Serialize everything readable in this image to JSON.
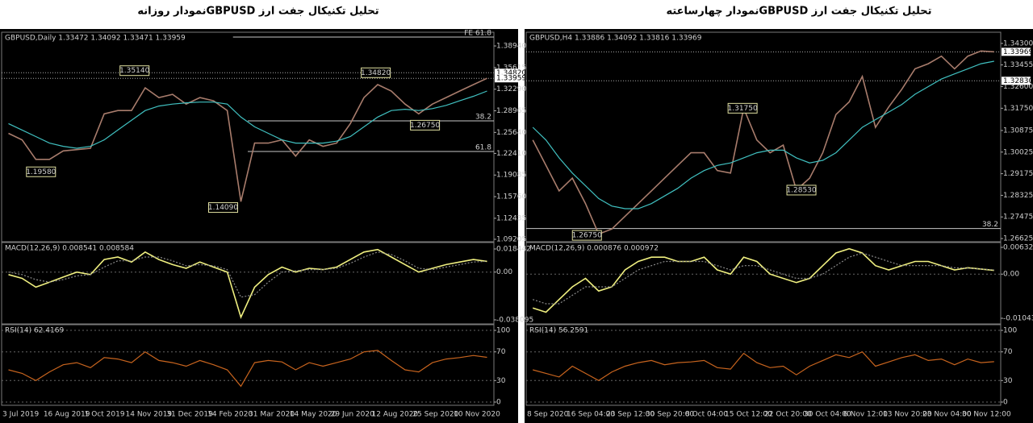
{
  "chart_data": [
    {
      "type": "line",
      "title": "تحلیل تکنیکال جفت ارز GBPUSDنمودار روزانه",
      "categories": [
        "3 Jul 2019",
        null,
        null,
        "16 Aug 2019",
        null,
        null,
        "1 Oct 2019",
        null,
        null,
        "14 Nov 2019",
        null,
        null,
        "31 Dec 2019",
        null,
        null,
        "14 Feb 2020",
        null,
        null,
        "31 Mar 2020",
        null,
        null,
        "14 May 2020",
        null,
        null,
        "29 Jun 2020",
        null,
        null,
        "12 Aug 2020",
        null,
        null,
        "25 Sep 2020",
        null,
        null,
        "10 Nov 2020",
        null,
        null
      ],
      "price": {
        "label": "GBPUSD,Daily 1.33472 1.34092 1.33471 1.33959",
        "ylim": [
          1.0883,
          1.4105
        ],
        "yticks": [
          {
            "value": 1.3894,
            "label": "1.38940"
          },
          1.35615,
          {
            "value": 1.3229,
            "label": "1.32290"
          },
          1.28965,
          {
            "value": 1.2564,
            "label": "1.25640"
          },
          {
            "value": 1.2241,
            "label": "1.22410"
          },
          1.19085,
          {
            "value": 1.1576,
            "label": "1.15760"
          },
          1.12435,
          1.09205
        ],
        "series": [
          {
            "color": "#a87c6c",
            "values": [
              1.255,
              1.245,
              1.215,
              1.215,
              1.228,
              1.23,
              1.232,
              1.285,
              1.29,
              1.29,
              1.325,
              1.31,
              1.315,
              1.3,
              1.31,
              1.305,
              1.29,
              1.15,
              1.24,
              1.24,
              1.245,
              1.22,
              1.245,
              1.235,
              1.24,
              1.27,
              1.31,
              1.33,
              1.32,
              1.3,
              1.285,
              1.3,
              1.31,
              1.32,
              1.33,
              1.3396
            ]
          },
          {
            "color": "#40c0c0",
            "values": [
              1.27,
              1.26,
              1.25,
              1.24,
              1.235,
              1.232,
              1.235,
              1.245,
              1.26,
              1.275,
              1.29,
              1.297,
              1.3,
              1.302,
              1.303,
              1.303,
              1.3,
              1.28,
              1.265,
              1.255,
              1.245,
              1.24,
              1.24,
              1.24,
              1.243,
              1.25,
              1.265,
              1.28,
              1.29,
              1.292,
              1.29,
              1.293,
              1.298,
              1.305,
              1.312,
              1.32
            ]
          }
        ],
        "annotations": [
          {
            "value": 1.3514,
            "label": "1.35140"
          },
          {
            "value": 1.1958,
            "label": "1.19580"
          },
          {
            "value": 1.1409,
            "label": "1.14090"
          },
          {
            "value": 1.3482,
            "label": "1.34820"
          },
          {
            "value": 1.2675,
            "label": "1.26750"
          }
        ],
        "levels": [
          {
            "level": 1.403,
            "text": "FE 61.8"
          },
          {
            "level": 1.2742,
            "text": "38.2"
          },
          {
            "level": 1.2271,
            "text": "61.8"
          }
        ],
        "price_tags": [
          {
            "value": 1.3482,
            "label": "1.34820"
          },
          1.33959
        ]
      },
      "macd": {
        "label": "MACD(12,26,9) 0.008541 0.008584",
        "ylim": [
          -0.04131,
          0.02358
        ],
        "yticks": [
          0.018442,
          {
            "value": 0,
            "label": "0.00"
          },
          -0.038095
        ],
        "series": [
          {
            "color": "#f0f080",
            "values": [
              -0.002,
              -0.005,
              -0.012,
              -0.008,
              -0.004,
              0,
              -0.002,
              0.01,
              0.012,
              0.008,
              0.016,
              0.01,
              0.006,
              0.003,
              0.008,
              0.004,
              0,
              -0.036,
              -0.012,
              -0.002,
              0.004,
              0,
              0.003,
              0.002,
              0.004,
              0.01,
              0.016,
              0.018,
              0.012,
              0.006,
              0,
              0.003,
              0.006,
              0.008,
              0.01,
              0.008541
            ]
          },
          {
            "color": "#8a8a8a",
            "values": [
              0,
              -0.002,
              -0.006,
              -0.008,
              -0.006,
              -0.003,
              -0.002,
              0.004,
              0.009,
              0.009,
              0.012,
              0.012,
              0.009,
              0.005,
              0.006,
              0.005,
              0.002,
              -0.02,
              -0.018,
              -0.008,
              0,
              0.001,
              0.002,
              0.002,
              0.003,
              0.007,
              0.012,
              0.016,
              0.014,
              0.009,
              0.003,
              0.002,
              0.004,
              0.006,
              0.008,
              0.008584
            ]
          }
        ]
      },
      "rsi": {
        "label": "RSI(14) 62.4169",
        "grid": true,
        "ylim": [
          -4.5,
          107.9
        ],
        "yticks": [
          100,
          70,
          30,
          0
        ],
        "series": [
          {
            "color": "#c8641e",
            "values": [
              45,
              40,
              30,
              42,
              52,
              55,
              48,
              62,
              60,
              55,
              70,
              58,
              55,
              50,
              58,
              52,
              45,
              22,
              55,
              58,
              56,
              45,
              55,
              50,
              55,
              60,
              70,
              72,
              58,
              45,
              42,
              55,
              60,
              62,
              65,
              62.4169
            ]
          }
        ]
      }
    },
    {
      "type": "line",
      "title": "تحلیل تکنیکال جفت ارز GBPUSDنمودار چهارساعته",
      "categories": [
        "8 Sep 2020",
        null,
        null,
        "16 Sep 04:00",
        null,
        null,
        "23 Sep 12:00",
        null,
        null,
        "30 Sep 20:00",
        null,
        null,
        "8 Oct 04:00",
        null,
        null,
        "15 Oct 12:00",
        null,
        null,
        "22 Oct 20:00",
        null,
        null,
        "30 Oct 04:00",
        null,
        null,
        "6 Nov 12:00",
        null,
        null,
        "13 Nov 20:00",
        null,
        null,
        "23 Nov 04:00",
        null,
        null,
        "30 Nov 12:00",
        null,
        null
      ],
      "price": {
        "label": "GBPUSD,H4 1.33886 1.34092 1.33816 1.33969",
        "ylim": [
          1.265,
          1.3474
        ],
        "yticks": [
          {
            "value": 1.343,
            "label": "1.34300"
          },
          1.33455,
          {
            "value": 1.326,
            "label": "1.32600"
          },
          {
            "value": 1.3175,
            "label": "1.31750"
          },
          1.30875,
          1.30025,
          1.29175,
          1.28325,
          1.27475,
          1.26625
        ],
        "series": [
          {
            "color": "#a87c6c",
            "values": [
              1.305,
              1.295,
              1.285,
              1.29,
              1.28,
              1.268,
              1.27,
              1.275,
              1.28,
              1.285,
              1.29,
              1.295,
              1.3,
              1.3,
              1.293,
              1.292,
              1.3175,
              1.305,
              1.3,
              1.303,
              1.2853,
              1.29,
              1.3,
              1.315,
              1.32,
              1.33,
              1.31,
              1.318,
              1.325,
              1.333,
              1.335,
              1.338,
              1.333,
              1.338,
              1.34,
              1.33969
            ]
          },
          {
            "color": "#40c0c0",
            "values": [
              1.31,
              1.305,
              1.298,
              1.292,
              1.287,
              1.282,
              1.279,
              1.278,
              1.278,
              1.28,
              1.283,
              1.286,
              1.29,
              1.293,
              1.295,
              1.296,
              1.298,
              1.3,
              1.301,
              1.301,
              1.298,
              1.296,
              1.297,
              1.3,
              1.305,
              1.31,
              1.313,
              1.316,
              1.319,
              1.323,
              1.326,
              1.329,
              1.331,
              1.333,
              1.335,
              1.336
            ]
          }
        ],
        "annotations": [
          {
            "value": 1.3175,
            "label": "1.31750"
          },
          {
            "value": 1.2853,
            "label": "1.28530"
          },
          {
            "value": 1.2675,
            "label": "1.26750"
          }
        ],
        "levels": [
          {
            "level": 1.2702,
            "text": "38.2"
          }
        ],
        "price_tags": [
          1.33969,
          {
            "value": 1.3283,
            "label": "1.32830"
          }
        ]
      },
      "macd": {
        "label": "MACD(12,26,9) 0.000876 0.000972",
        "ylim": [
          -0.01177,
          0.00747
        ],
        "yticks": [
          0.006326,
          {
            "value": 0,
            "label": "0.00"
          },
          -0.010438
        ],
        "series": [
          {
            "color": "#f0f080",
            "values": [
              -0.008,
              -0.009,
              -0.006,
              -0.003,
              -0.001,
              -0.004,
              -0.003,
              0.001,
              0.003,
              0.004,
              0.004,
              0.003,
              0.003,
              0.004,
              0.001,
              0,
              0.004,
              0.003,
              0,
              -0.001,
              -0.002,
              -0.001,
              0.002,
              0.005,
              0.006,
              0.005,
              0.002,
              0.001,
              0.002,
              0.003,
              0.003,
              0.002,
              0.001,
              0.0015,
              0.0012,
              0.000876
            ]
          },
          {
            "color": "#8a8a8a",
            "values": [
              -0.006,
              -0.007,
              -0.007,
              -0.005,
              -0.003,
              -0.003,
              -0.003,
              -0.001,
              0.001,
              0.002,
              0.003,
              0.003,
              0.003,
              0.003,
              0.002,
              0.001,
              0.002,
              0.002,
              0.001,
              0,
              -0.001,
              -0.001,
              0,
              0.002,
              0.004,
              0.005,
              0.004,
              0.003,
              0.002,
              0.002,
              0.002,
              0.002,
              0.0015,
              0.0014,
              0.0012,
              0.000972
            ]
          }
        ]
      },
      "rsi": {
        "label": "RSI(14) 56.2591",
        "grid": true,
        "ylim": [
          -4.5,
          107.9
        ],
        "yticks": [
          100,
          70,
          30,
          0
        ],
        "series": [
          {
            "color": "#c8641e",
            "values": [
              45,
              40,
              35,
              50,
              40,
              30,
              42,
              50,
              55,
              58,
              52,
              55,
              56,
              58,
              48,
              46,
              68,
              55,
              48,
              50,
              38,
              50,
              58,
              66,
              62,
              70,
              50,
              56,
              62,
              66,
              58,
              60,
              52,
              60,
              55,
              56.2591
            ]
          }
        ]
      }
    }
  ]
}
